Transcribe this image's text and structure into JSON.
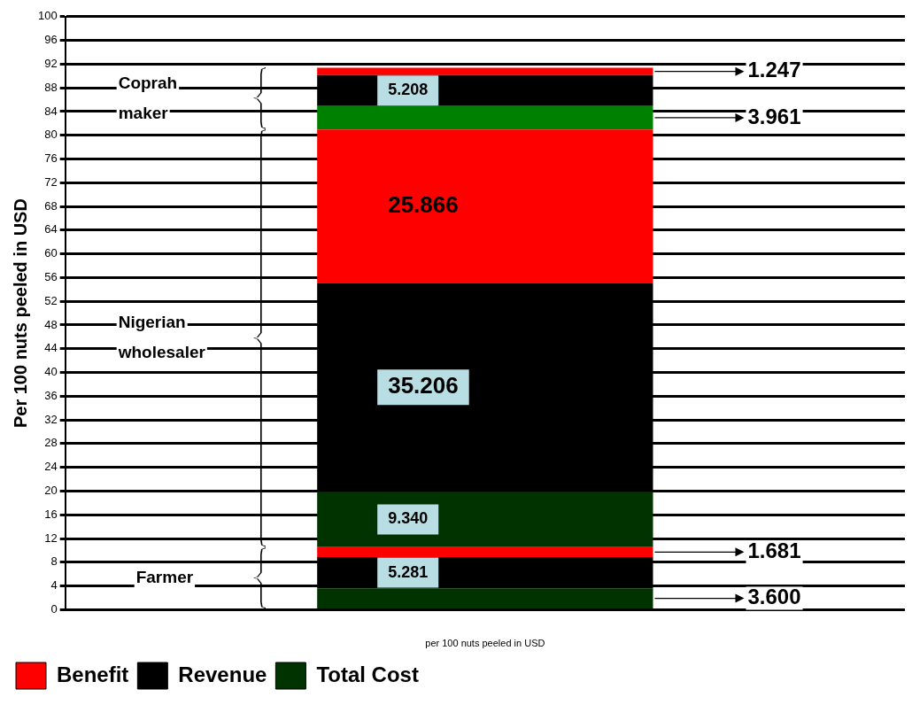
{
  "chart_data": {
    "type": "bar",
    "stacked": true,
    "ylabel": "Per 100 nuts peeled in USD",
    "xlabel": "per 100 nuts peeled in USD",
    "categories": [
      null
    ],
    "series": [
      {
        "name": "Total Cost",
        "color": "#003300",
        "values": [
          3.6
        ],
        "value_labels": [
          "3.600"
        ]
      },
      {
        "name": "Revenue",
        "color": "#000000",
        "values": [
          5.281
        ],
        "value_labels": [
          "5.281"
        ]
      },
      {
        "name": "Benefit",
        "color": "#ff0000",
        "values": [
          1.681
        ],
        "value_labels": [
          "1.681"
        ]
      },
      {
        "color": "#003300",
        "values": [
          9.34
        ],
        "value_labels": [
          "9.340"
        ]
      },
      {
        "color": "#000000",
        "values": [
          35.206
        ],
        "value_labels": [
          "35.206"
        ]
      },
      {
        "color": "#ff0000",
        "values": [
          25.866
        ],
        "value_labels": [
          "25.866"
        ]
      },
      {
        "color": "#008000",
        "values": [
          3.961
        ],
        "value_labels": [
          "3.961"
        ]
      },
      {
        "color": "#000000",
        "values": [
          5.208
        ],
        "value_labels": [
          "5.208"
        ]
      },
      {
        "color": "#ff0000",
        "values": [
          1.247
        ],
        "value_labels": [
          "1.247"
        ]
      }
    ],
    "annotations": [
      "Farmer",
      "Nigerian wholesaler",
      "Coprah maker"
    ],
    "ylim": [
      0,
      100
    ],
    "yticks": [
      0,
      4,
      8,
      12,
      16,
      20,
      24,
      28,
      32,
      36,
      40,
      44,
      48,
      52,
      56,
      60,
      64,
      68,
      72,
      76,
      80,
      84,
      88,
      92,
      96,
      100
    ],
    "grid": "y",
    "legend": "bottom left"
  }
}
